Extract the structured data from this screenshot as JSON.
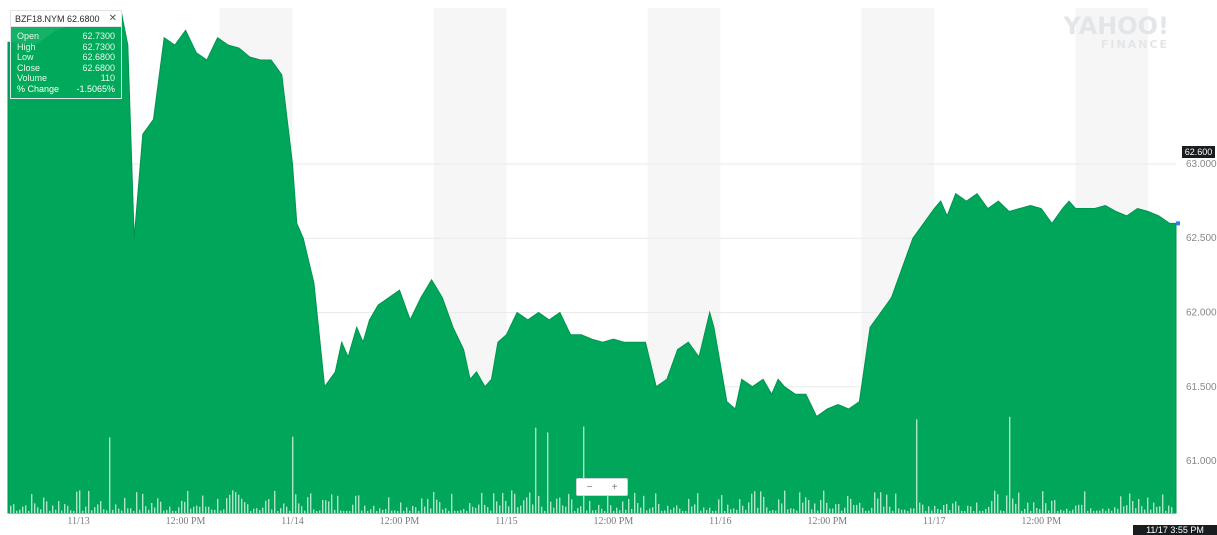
{
  "tooltip": {
    "title": "BZF18.NYM 62.6800",
    "rows": [
      {
        "label": "Open",
        "value": "62.7300"
      },
      {
        "label": "High",
        "value": "62.7300"
      },
      {
        "label": "Low",
        "value": "62.6800"
      },
      {
        "label": "Close",
        "value": "62.6800"
      },
      {
        "label": "Volume",
        "value": "110"
      },
      {
        "label": "% Change",
        "value": "-1.5065%"
      }
    ]
  },
  "logo": {
    "top": "YAHOO!",
    "bottom": "FINANCE"
  },
  "zoom": {
    "minus": "−",
    "plus": "+"
  },
  "current_price_label": "62.600",
  "current_date_label": "11/17 3:55 PM",
  "colors": {
    "area": "#00a65a",
    "volume": "#ccefdb",
    "band": "#f6f6f6",
    "grid": "#eaeaea",
    "axis_text": "#888888"
  },
  "chart_data": {
    "type": "area",
    "title": "",
    "xlabel": "",
    "ylabel": "",
    "ylim": [
      60.65,
      64.05
    ],
    "ytick_labels": [
      "63.000",
      "62.500",
      "62.000",
      "61.500",
      "61.000"
    ],
    "ytick_values": [
      63.0,
      62.5,
      62.0,
      61.5,
      61.0
    ],
    "xtick_labels": [
      "11/13",
      "12:00 PM",
      "11/14",
      "12:00 PM",
      "11/15",
      "12:00 PM",
      "11/16",
      "12:00 PM",
      "11/17",
      "12:00 PM"
    ],
    "xtick_values": [
      0,
      5,
      10,
      15,
      20,
      25,
      30,
      35,
      40,
      45
    ],
    "xlim": [
      -3.3,
      51.3
    ],
    "shaded_bands": [
      [
        6.6,
        10.0
      ],
      [
        16.6,
        20.0
      ],
      [
        26.6,
        30.0
      ],
      [
        36.6,
        40.0
      ],
      [
        46.6,
        50.0
      ]
    ],
    "series": [
      {
        "x": [
          -3.3,
          -2.0,
          -1.0,
          0,
          1.0,
          2.0,
          2.3,
          2.6,
          3.0,
          3.5,
          4.0,
          4.5,
          5.0,
          5.5,
          6.0,
          6.5,
          7.0,
          7.5,
          8.0,
          8.5,
          9.0,
          9.5,
          10.0,
          10.2,
          10.5,
          11.0,
          11.5,
          12.0,
          12.3,
          12.6,
          13.0,
          13.3,
          13.6,
          14.0,
          14.5,
          15.0,
          15.5,
          16.0,
          16.5,
          17.0,
          17.5,
          18.0,
          18.3,
          18.6,
          19.0,
          19.3,
          19.6,
          20.0,
          20.5,
          21.0,
          21.5,
          22.0,
          22.5,
          23.0,
          23.5,
          24.0,
          24.5,
          25.0,
          25.5,
          26.0,
          26.5,
          27.0,
          27.5,
          28.0,
          28.5,
          29.0,
          29.5,
          29.7,
          30.0,
          30.3,
          30.7,
          31.0,
          31.5,
          32.0,
          32.4,
          32.7,
          33.0,
          33.5,
          34.0,
          34.5,
          35.0,
          35.5,
          36.0,
          36.5,
          37.0,
          37.5,
          38.0,
          38.5,
          39.0,
          39.5,
          40.0,
          40.3,
          40.6,
          41.0,
          41.5,
          42.0,
          42.5,
          43.0,
          43.5,
          44.0,
          44.5,
          45.0,
          45.5,
          46.0,
          46.3,
          46.6,
          47.0,
          47.5,
          48.0,
          48.5,
          49.0,
          49.5,
          50.0,
          50.5,
          51.0,
          51.3
        ],
        "y": [
          63.82,
          63.8,
          63.9,
          63.95,
          64.0,
          64.02,
          63.8,
          62.5,
          63.2,
          63.3,
          63.85,
          63.8,
          63.9,
          63.75,
          63.7,
          63.85,
          63.8,
          63.78,
          63.72,
          63.7,
          63.7,
          63.6,
          63.0,
          62.6,
          62.5,
          62.2,
          61.5,
          61.6,
          61.8,
          61.7,
          61.9,
          61.8,
          61.95,
          62.05,
          62.1,
          62.15,
          61.95,
          62.1,
          62.22,
          62.1,
          61.9,
          61.75,
          61.55,
          61.6,
          61.5,
          61.55,
          61.8,
          61.85,
          62.0,
          61.95,
          62.0,
          61.95,
          62.0,
          61.85,
          61.85,
          61.82,
          61.8,
          61.82,
          61.8,
          61.8,
          61.8,
          61.5,
          61.55,
          61.75,
          61.8,
          61.7,
          62.0,
          61.9,
          61.65,
          61.4,
          61.35,
          61.55,
          61.5,
          61.55,
          61.45,
          61.55,
          61.5,
          61.45,
          61.45,
          61.3,
          61.35,
          61.38,
          61.35,
          61.4,
          61.9,
          62.0,
          62.1,
          62.3,
          62.5,
          62.6,
          62.7,
          62.75,
          62.65,
          62.8,
          62.75,
          62.8,
          62.7,
          62.75,
          62.68,
          62.7,
          62.72,
          62.7,
          62.6,
          62.7,
          62.75,
          62.7,
          62.7,
          62.7,
          62.72,
          62.68,
          62.65,
          62.7,
          62.68,
          62.65,
          62.6,
          62.6
        ]
      }
    ],
    "current_value": 62.6
  }
}
